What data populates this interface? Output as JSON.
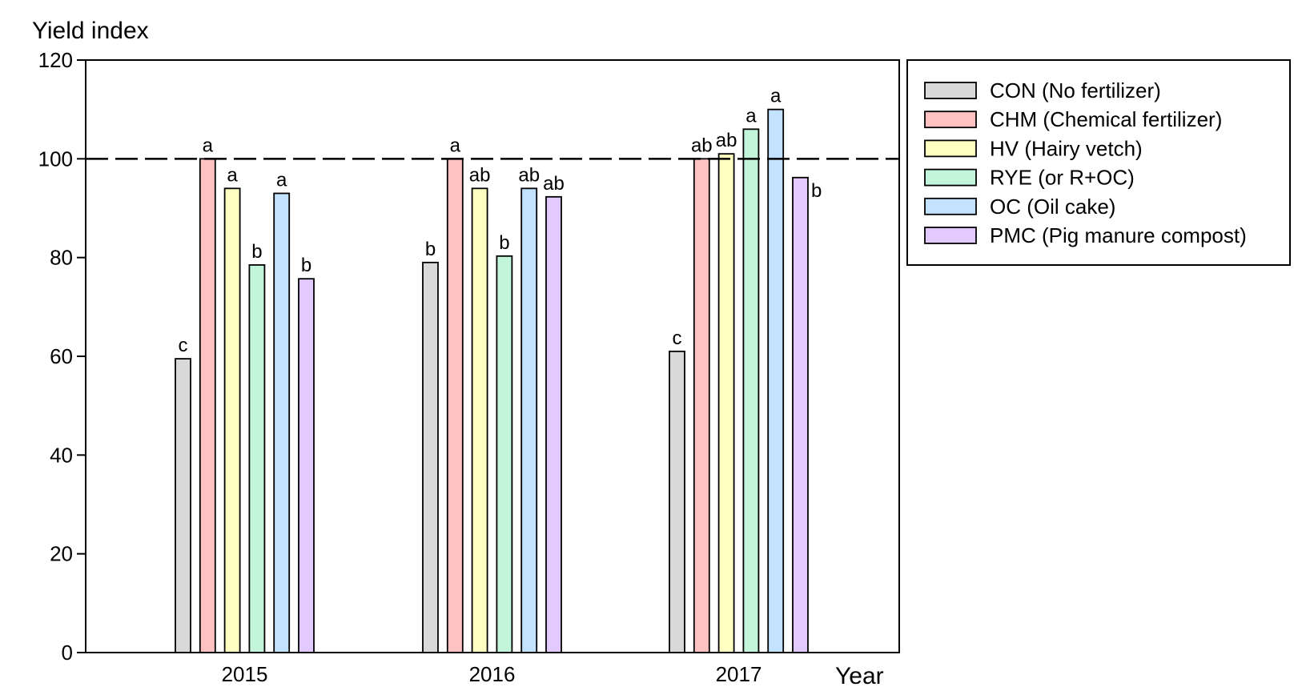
{
  "chart_data": {
    "type": "bar",
    "title": "",
    "ylabel": "Yield index",
    "xlabel": "Year",
    "ylim": [
      0,
      120
    ],
    "yticks": [
      0,
      20,
      40,
      60,
      80,
      100,
      120
    ],
    "categories": [
      "2015",
      "2016",
      "2017"
    ],
    "reference_line": {
      "value": 100,
      "style": "dashed"
    },
    "grid": false,
    "legend_position": "right-top",
    "series": [
      {
        "name": "CON (No fertilizer)",
        "color": "#d9d9d9",
        "values": [
          59.5,
          79,
          61
        ],
        "letters": [
          "c",
          "b",
          "c"
        ]
      },
      {
        "name": "CHM (Chemical fertilizer)",
        "color": "#ffc2c2",
        "values": [
          100,
          100,
          100
        ],
        "letters": [
          "a",
          "a",
          "ab"
        ]
      },
      {
        "name": "HV (Hairy vetch)",
        "color": "#ffffc2",
        "values": [
          94,
          94,
          101
        ],
        "letters": [
          "a",
          "ab",
          "ab"
        ]
      },
      {
        "name": "RYE (or R+OC)",
        "color": "#c2f5d9",
        "values": [
          78.5,
          80.3,
          106
        ],
        "letters": [
          "b",
          "b",
          "a"
        ]
      },
      {
        "name": "OC (Oil cake)",
        "color": "#c2e2ff",
        "values": [
          93,
          94,
          110
        ],
        "letters": [
          "a",
          "ab",
          "a"
        ]
      },
      {
        "name": "PMC (Pig manure compost)",
        "color": "#e2c9ff",
        "values": [
          75.7,
          92.3,
          96.2
        ],
        "letters": [
          "b",
          "ab",
          "b"
        ]
      }
    ]
  }
}
